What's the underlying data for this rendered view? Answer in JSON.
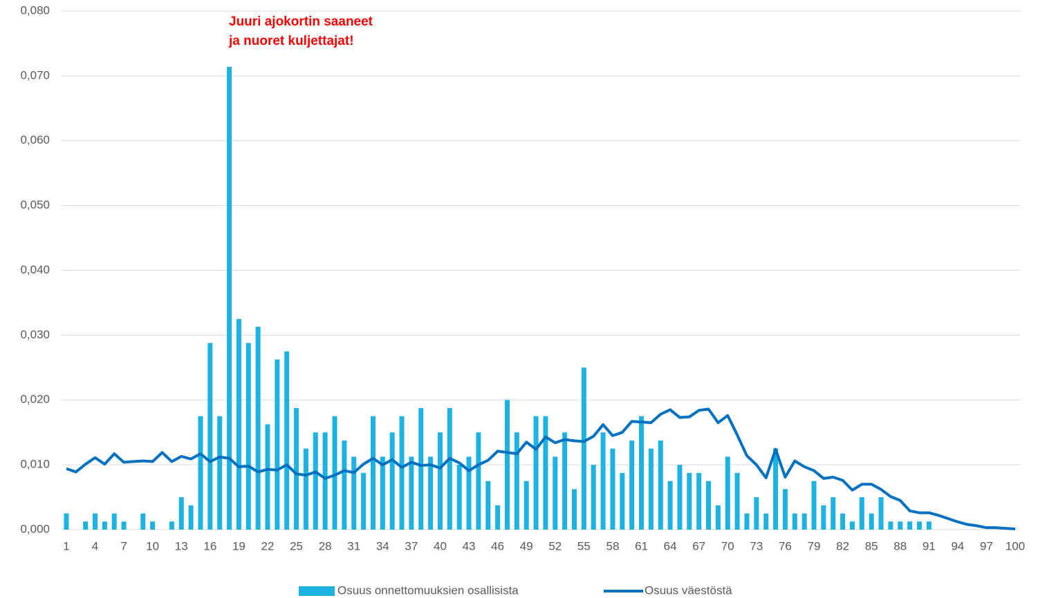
{
  "chart_data": {
    "type": "bar",
    "annotations": [
      "Juuri ajokortin saaneet",
      "ja nuoret kuljettajat!"
    ],
    "categories": [
      "1",
      null,
      null,
      "4",
      null,
      null,
      "7",
      null,
      null,
      "10",
      null,
      null,
      "13",
      null,
      null,
      "16",
      null,
      null,
      "19",
      null,
      null,
      "22",
      null,
      null,
      "25",
      null,
      null,
      "28",
      null,
      null,
      "31",
      null,
      null,
      "34",
      null,
      null,
      "37",
      null,
      null,
      "40",
      null,
      null,
      "43",
      null,
      null,
      "46",
      null,
      null,
      "49",
      null,
      null,
      "52",
      null,
      null,
      "55",
      null,
      null,
      "58",
      null,
      null,
      "61",
      null,
      null,
      "64",
      null,
      null,
      "67",
      null,
      null,
      "70",
      null,
      null,
      "73",
      null,
      null,
      "76",
      null,
      null,
      "79",
      null,
      null,
      "82",
      null,
      null,
      "85",
      null,
      null,
      "88",
      null,
      null,
      "91",
      null,
      null,
      "94",
      null,
      null,
      "97",
      null,
      null,
      "100"
    ],
    "series": [
      {
        "name": "Osuus onnettomuuksien osallisista",
        "type": "bar",
        "color": "#1cb3e3",
        "values": [
          0.0025,
          0,
          0.00125,
          0.0025,
          0.00125,
          0.0025,
          0.00125,
          0,
          0.0025,
          0.00125,
          0,
          0.00125,
          0.005,
          0.00375,
          0.0175,
          0.0288,
          0.0175,
          0.0714,
          0.0325,
          0.0288,
          0.0313,
          0.01625,
          0.02625,
          0.0275,
          0.01875,
          0.0125,
          0.015,
          0.015,
          0.0175,
          0.01375,
          0.01125,
          0.00875,
          0.0175,
          0.01125,
          0.015,
          0.0175,
          0.01125,
          0.01875,
          0.01125,
          0.015,
          0.01875,
          0.01,
          0.01125,
          0.015,
          0.0075,
          0.00375,
          0.02,
          0.015,
          0.0075,
          0.0175,
          0.0175,
          0.01125,
          0.015,
          0.00625,
          0.025,
          0.01,
          0.015,
          0.0125,
          0.00875,
          0.01375,
          0.0175,
          0.0125,
          0.01375,
          0.0075,
          0.01,
          0.00875,
          0.00875,
          0.0075,
          0.00375,
          0.01125,
          0.00875,
          0.0025,
          0.005,
          0.0025,
          0.0125,
          0.00625,
          0.0025,
          0.0025,
          0.0075,
          0.00375,
          0.005,
          0.0025,
          0.00125,
          0.005,
          0.0025,
          0.005,
          0.00125,
          0.00125,
          0.00125,
          0.00125,
          0.00125,
          0,
          0,
          0,
          0,
          0,
          0,
          0,
          0,
          0
        ]
      },
      {
        "name": "Osuus väestöstä",
        "type": "line",
        "color": "#0070c0",
        "values": [
          0.0094,
          0.0089,
          0.0101,
          0.0111,
          0.0101,
          0.0117,
          0.0104,
          0.0105,
          0.0106,
          0.0105,
          0.0119,
          0.0105,
          0.0113,
          0.0109,
          0.0117,
          0.0105,
          0.0112,
          0.011,
          0.0097,
          0.0098,
          0.0089,
          0.0093,
          0.0092,
          0.01,
          0.0086,
          0.0084,
          0.0089,
          0.0079,
          0.0084,
          0.0091,
          0.0088,
          0.0101,
          0.011,
          0.01,
          0.0108,
          0.0096,
          0.0104,
          0.0099,
          0.01,
          0.0095,
          0.011,
          0.0103,
          0.0091,
          0.01,
          0.0107,
          0.0121,
          0.0119,
          0.0117,
          0.0135,
          0.0124,
          0.0143,
          0.0134,
          0.0139,
          0.0137,
          0.0136,
          0.0144,
          0.0162,
          0.0145,
          0.015,
          0.0167,
          0.0166,
          0.0165,
          0.0178,
          0.0185,
          0.0173,
          0.0174,
          0.0184,
          0.0186,
          0.0165,
          0.0176,
          0.0146,
          0.0114,
          0.01,
          0.008,
          0.0124,
          0.0081,
          0.0106,
          0.0097,
          0.0091,
          0.0079,
          0.0081,
          0.0076,
          0.0061,
          0.007,
          0.007,
          0.0062,
          0.0051,
          0.0045,
          0.0029,
          0.0026,
          0.0026,
          0.0022,
          0.0017,
          0.0012,
          0.0008,
          0.0006,
          0.0003,
          0.0003,
          0.0002,
          0.0001
        ]
      }
    ],
    "ylim": [
      0,
      0.08
    ],
    "yticks": [
      {
        "value": 0,
        "label": "0,000"
      },
      {
        "value": 0.01,
        "label": "0,010"
      },
      {
        "value": 0.02,
        "label": "0,020"
      },
      {
        "value": 0.03,
        "label": "0,030"
      },
      {
        "value": 0.04,
        "label": "0,040"
      },
      {
        "value": 0.05,
        "label": "0,050"
      },
      {
        "value": 0.06,
        "label": "0,060"
      },
      {
        "value": 0.07,
        "label": "0,070"
      },
      {
        "value": 0.08,
        "label": "0,080"
      }
    ],
    "grid": true,
    "legend": "bottom"
  }
}
